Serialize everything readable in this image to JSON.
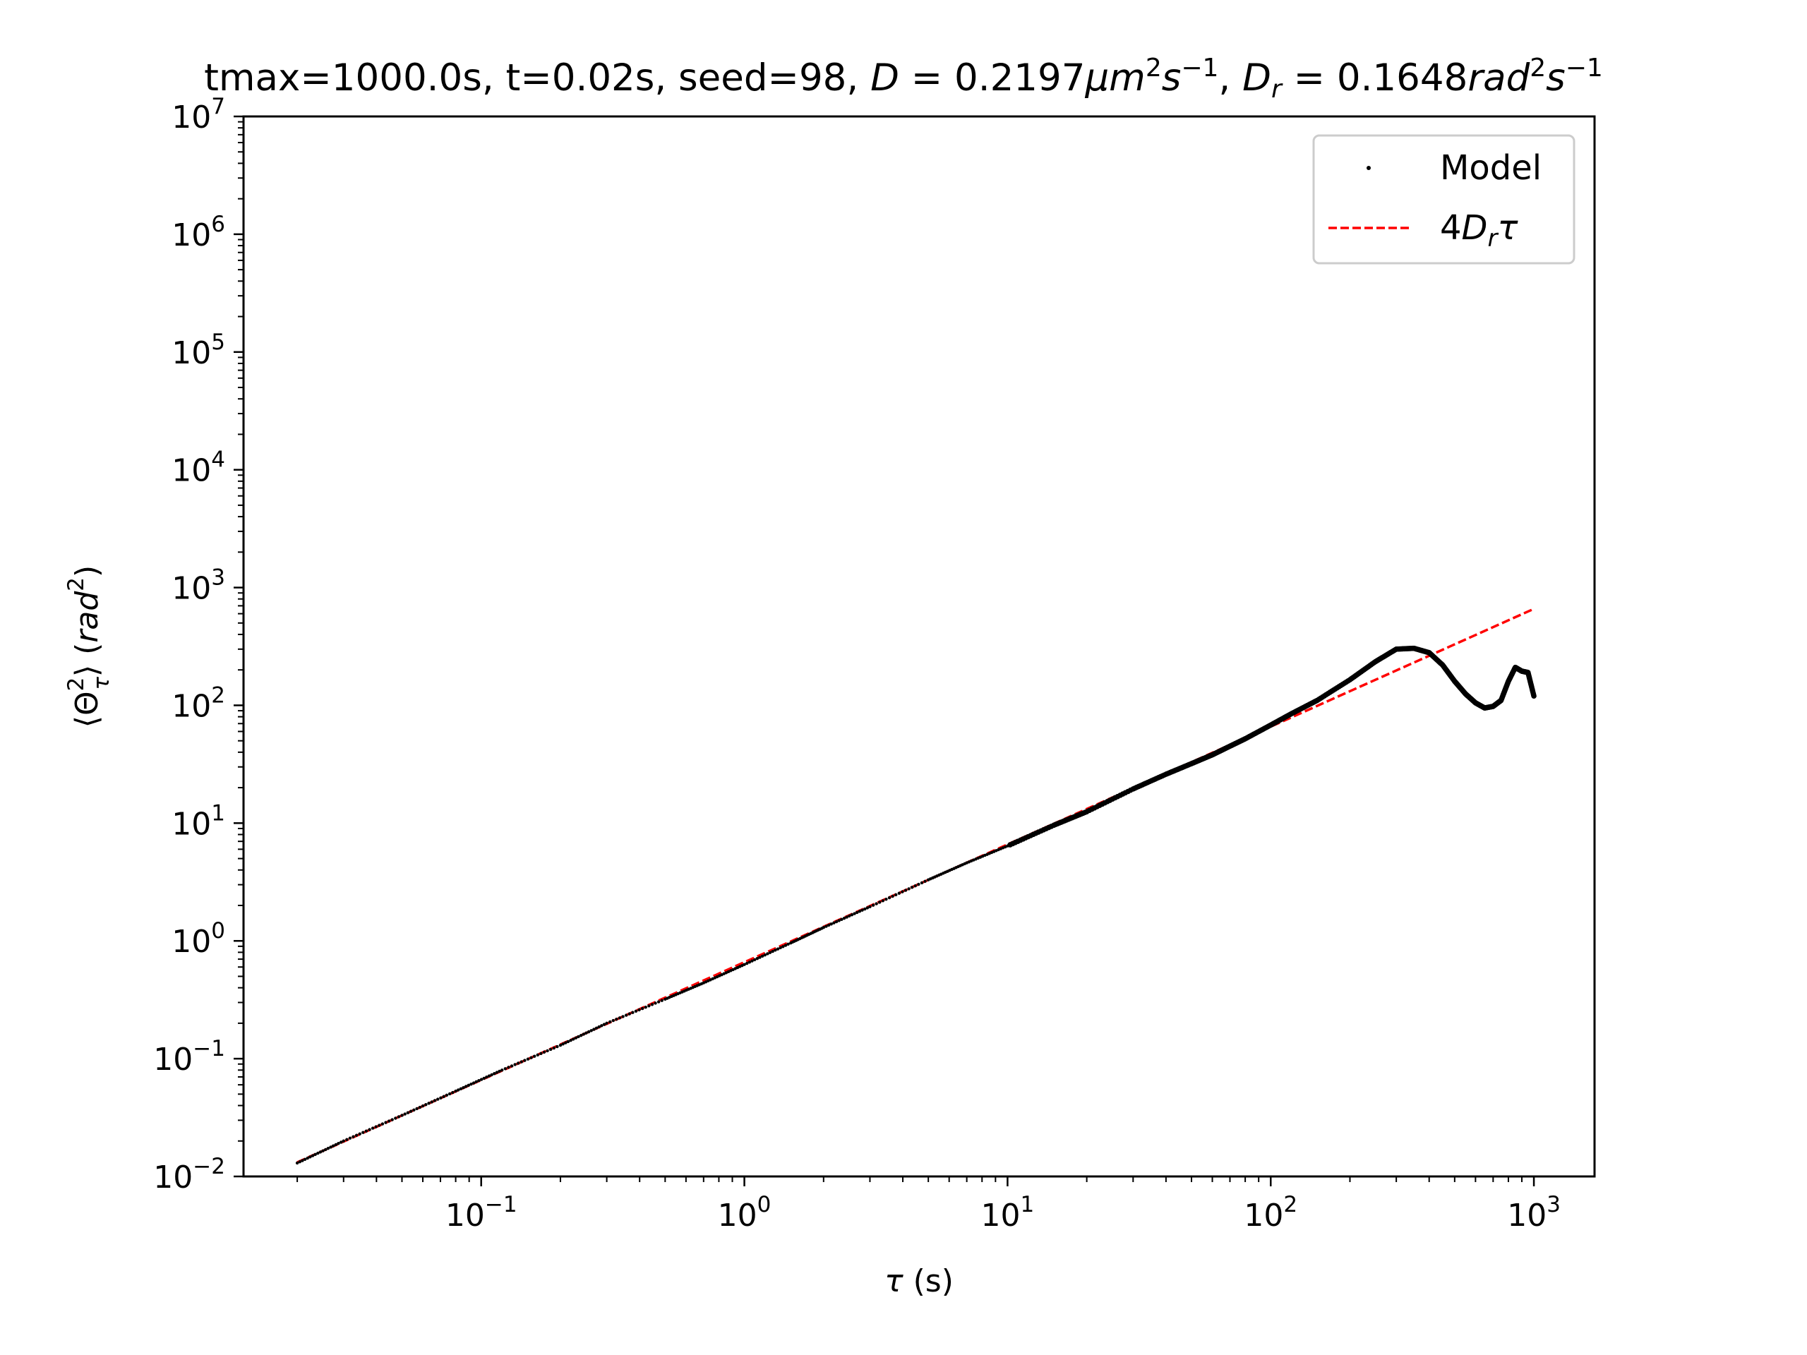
{
  "chart_data": {
    "type": "scatter",
    "title": "tmax=1000.0s, t=0.02s, seed=98, D = 0.2197μm²s⁻¹, Dᵣ = 0.1648rad²s⁻¹",
    "title_parts": {
      "plain": "tmax=1000.0s, t=0.02s, seed=98, ",
      "d_name": "D",
      "d_value": "0.2197",
      "d_units": "μm",
      "sep": ", ",
      "dr_name": "D",
      "dr_sub": "r",
      "dr_value": "0.1648",
      "dr_units": "rad",
      "sup2": "2",
      "s": "s",
      "sup_neg1": "−1",
      "eq": " = "
    },
    "xlabel": "τ (s)",
    "ylabel": "⟨Θ²τ⟩ (rad²)",
    "xlabel_parts": {
      "sym": "τ",
      "unit": " (s)"
    },
    "ylabel_parts": {
      "open": "⟨Θ",
      "sup": "2",
      "sub": "τ",
      "close": "⟩ (",
      "unit": "rad",
      "unit_sup": "2",
      "end": ")"
    },
    "x_scale": "log",
    "y_scale": "log",
    "xlim": [
      0.0125,
      1700
    ],
    "ylim": [
      0.01,
      10000000
    ],
    "x_ticks": [
      {
        "base": "10",
        "exp": "−1",
        "value": 0.1
      },
      {
        "base": "10",
        "exp": "0",
        "value": 1
      },
      {
        "base": "10",
        "exp": "1",
        "value": 10
      },
      {
        "base": "10",
        "exp": "2",
        "value": 100
      },
      {
        "base": "10",
        "exp": "3",
        "value": 1000
      }
    ],
    "y_ticks": [
      {
        "base": "10",
        "exp": "−2",
        "value": 0.01
      },
      {
        "base": "10",
        "exp": "−1",
        "value": 0.1
      },
      {
        "base": "10",
        "exp": "0",
        "value": 1
      },
      {
        "base": "10",
        "exp": "1",
        "value": 10
      },
      {
        "base": "10",
        "exp": "2",
        "value": 100
      },
      {
        "base": "10",
        "exp": "3",
        "value": 1000
      },
      {
        "base": "10",
        "exp": "4",
        "value": 10000
      },
      {
        "base": "10",
        "exp": "5",
        "value": 100000
      },
      {
        "base": "10",
        "exp": "6",
        "value": 1000000
      },
      {
        "base": "10",
        "exp": "7",
        "value": 10000000
      }
    ],
    "grid": false,
    "legend_position": "top-right",
    "series": [
      {
        "name": "Model",
        "style": "points",
        "color": "#000000",
        "x": [
          0.02,
          0.03,
          0.05,
          0.08,
          0.12,
          0.2,
          0.3,
          0.5,
          0.7,
          1.0,
          1.5,
          2,
          3,
          5,
          7,
          10,
          15,
          20,
          30,
          40,
          50,
          60,
          70,
          80,
          100,
          120,
          150,
          200,
          250,
          300,
          350,
          400,
          450,
          500,
          550,
          600,
          650,
          700,
          750,
          800,
          850,
          900,
          950,
          1000
        ],
        "y": [
          0.013,
          0.02,
          0.033,
          0.053,
          0.08,
          0.13,
          0.2,
          0.32,
          0.44,
          0.63,
          0.96,
          1.3,
          1.95,
          3.3,
          4.6,
          6.4,
          9.6,
          12.5,
          19.5,
          26,
          32,
          38,
          45,
          52,
          68,
          85,
          110,
          165,
          235,
          300,
          305,
          280,
          220,
          160,
          125,
          105,
          95,
          98,
          110,
          160,
          210,
          195,
          190,
          120
        ]
      },
      {
        "name": "4Dᵣτ",
        "style": "dashed",
        "color": "#ff0000",
        "x": [
          0.02,
          1000
        ],
        "y": [
          0.013184,
          659.2
        ]
      }
    ],
    "legend_parts": {
      "model": "Model",
      "fit_prefix": "4",
      "fit_d": "D",
      "fit_sub": "r",
      "fit_tau": "τ"
    }
  }
}
